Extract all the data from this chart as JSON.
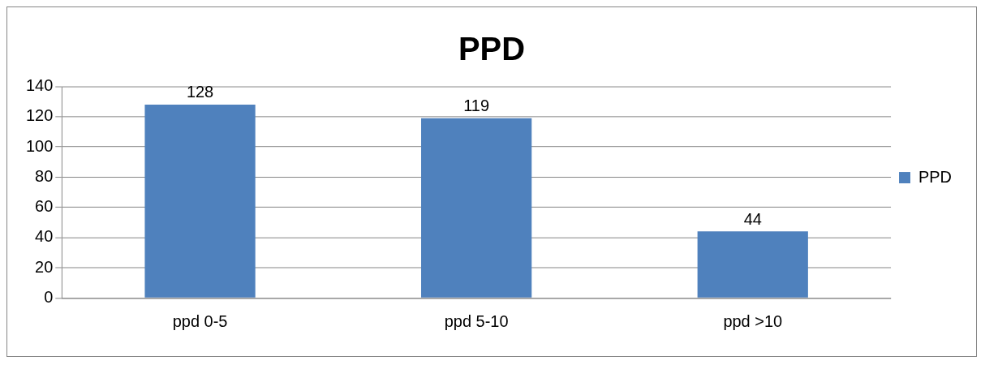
{
  "chart_data": {
    "type": "bar",
    "title": "PPD",
    "categories": [
      "ppd 0-5",
      "ppd 5-10",
      "ppd >10"
    ],
    "series": [
      {
        "name": "PPD",
        "color": "#4f81bd",
        "values": [
          128,
          119,
          44
        ]
      }
    ],
    "ylim": [
      0,
      140
    ],
    "yticks": [
      0,
      20,
      40,
      60,
      80,
      100,
      120,
      140
    ],
    "grid": "y",
    "legend": "right",
    "data_labels": true
  }
}
